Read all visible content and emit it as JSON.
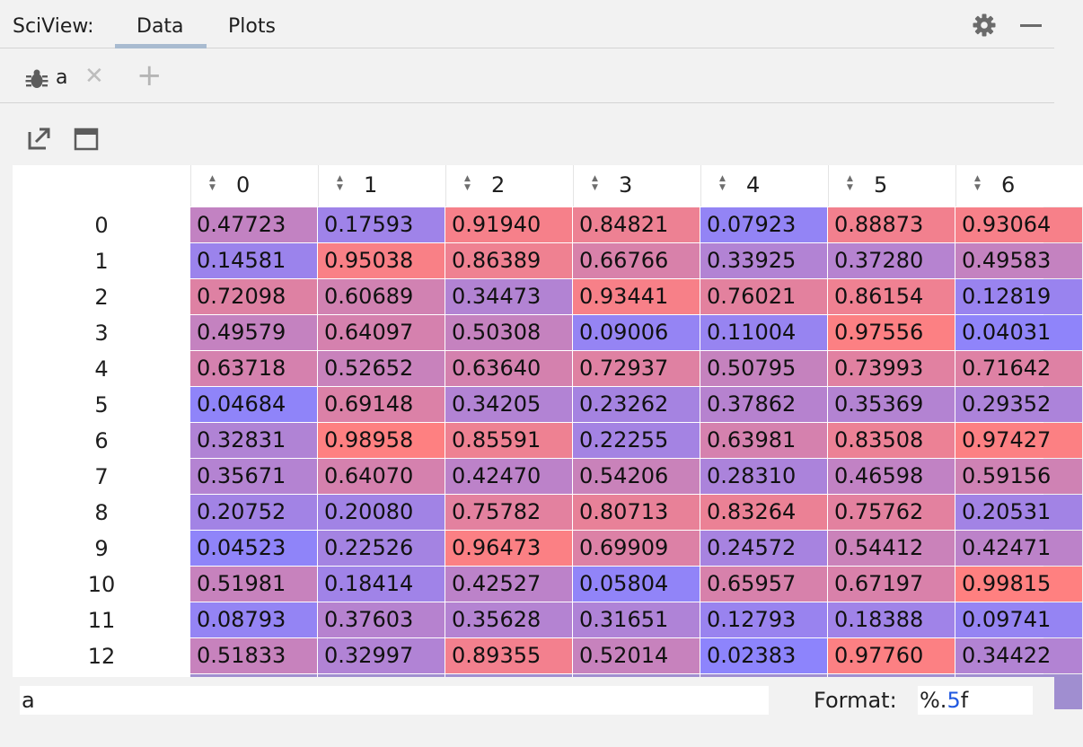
{
  "header": {
    "title": "SciView:",
    "tabs": [
      "Data",
      "Plots"
    ],
    "active_tab": "Data"
  },
  "file_tab": {
    "label": "a",
    "icon": "bug-icon"
  },
  "table": {
    "columns": [
      "0",
      "1",
      "2",
      "3",
      "4",
      "5",
      "6"
    ],
    "row_labels": [
      "0",
      "1",
      "2",
      "3",
      "4",
      "5",
      "6",
      "7",
      "8",
      "9",
      "10",
      "11",
      "12"
    ],
    "rows": [
      [
        "0.47723",
        "0.17593",
        "0.91940",
        "0.84821",
        "0.07923",
        "0.88873",
        "0.93064"
      ],
      [
        "0.14581",
        "0.95038",
        "0.86389",
        "0.66766",
        "0.33925",
        "0.37280",
        "0.49583"
      ],
      [
        "0.72098",
        "0.60689",
        "0.34473",
        "0.93441",
        "0.76021",
        "0.86154",
        "0.12819"
      ],
      [
        "0.49579",
        "0.64097",
        "0.50308",
        "0.09006",
        "0.11004",
        "0.97556",
        "0.04031"
      ],
      [
        "0.63718",
        "0.52652",
        "0.63640",
        "0.72937",
        "0.50795",
        "0.73993",
        "0.71642"
      ],
      [
        "0.04684",
        "0.69148",
        "0.34205",
        "0.23262",
        "0.37862",
        "0.35369",
        "0.29352"
      ],
      [
        "0.32831",
        "0.98958",
        "0.85591",
        "0.22255",
        "0.63981",
        "0.83508",
        "0.97427"
      ],
      [
        "0.35671",
        "0.64070",
        "0.42470",
        "0.54206",
        "0.28310",
        "0.46598",
        "0.59156"
      ],
      [
        "0.20752",
        "0.20080",
        "0.75782",
        "0.80713",
        "0.83264",
        "0.75762",
        "0.20531"
      ],
      [
        "0.04523",
        "0.22526",
        "0.96473",
        "0.69909",
        "0.24572",
        "0.54412",
        "0.42471"
      ],
      [
        "0.51981",
        "0.18414",
        "0.42527",
        "0.05804",
        "0.65957",
        "0.67197",
        "0.99815"
      ],
      [
        "0.08793",
        "0.37603",
        "0.35628",
        "0.31651",
        "0.12793",
        "0.18388",
        "0.09741"
      ],
      [
        "0.51833",
        "0.32997",
        "0.89355",
        "0.52014",
        "0.02383",
        "0.97760",
        "0.34422"
      ]
    ],
    "color_low": "#8a84ff",
    "color_high": "#ff8080"
  },
  "footer": {
    "expression": "a",
    "format_label": "Format:",
    "format_prefix": "%.",
    "format_number": "5",
    "format_suffix": "f"
  }
}
